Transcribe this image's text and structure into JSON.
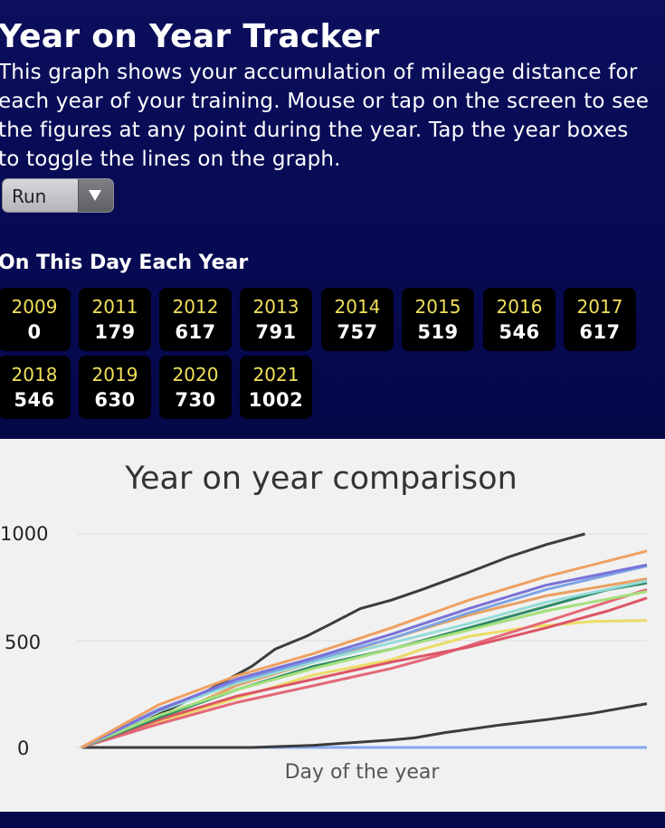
{
  "header": {
    "title": "Year on Year Tracker",
    "description": "This graph shows your accumulation of mileage distance for each year of your training. Mouse or tap on the screen to see the figures at any point during the year. Tap the year boxes to toggle the lines on the graph."
  },
  "activity_select": {
    "value": "Run",
    "arrow_icon": "chevron-down-icon"
  },
  "on_this_day": {
    "heading": "On This Day Each Year",
    "tiles": [
      {
        "year": "2009",
        "value": "0"
      },
      {
        "year": "2011",
        "value": "179"
      },
      {
        "year": "2012",
        "value": "617"
      },
      {
        "year": "2013",
        "value": "791"
      },
      {
        "year": "2014",
        "value": "757"
      },
      {
        "year": "2015",
        "value": "519"
      },
      {
        "year": "2016",
        "value": "546"
      },
      {
        "year": "2017",
        "value": "617"
      },
      {
        "year": "2018",
        "value": "546"
      },
      {
        "year": "2019",
        "value": "630"
      },
      {
        "year": "2020",
        "value": "730"
      },
      {
        "year": "2021",
        "value": "1002"
      }
    ]
  },
  "chart_data": {
    "type": "line",
    "title": "Year on year comparison",
    "xlabel": "Day of the year",
    "ylabel": "",
    "xlim": [
      0,
      365
    ],
    "ylim": [
      0,
      1000
    ],
    "yticks": [
      "1000",
      "500",
      "0"
    ],
    "ytick_values": [
      1000,
      500,
      0
    ],
    "grid": true,
    "legend": "none",
    "series": [
      {
        "color": "#87a8ee",
        "values": [
          [
            0,
            0
          ],
          [
            365,
            0
          ]
        ]
      },
      {
        "color": "#3c3c3c",
        "values": [
          [
            0,
            0
          ],
          [
            110,
            0
          ],
          [
            150,
            10
          ],
          [
            200,
            35
          ],
          [
            215,
            45
          ],
          [
            235,
            70
          ],
          [
            255,
            90
          ],
          [
            270,
            105
          ],
          [
            300,
            130
          ],
          [
            330,
            160
          ],
          [
            365,
            205
          ]
        ]
      },
      {
        "color": "#3c3c3c",
        "values": [
          [
            0,
            0
          ],
          [
            40,
            120
          ],
          [
            80,
            260
          ],
          [
            110,
            380
          ],
          [
            125,
            460
          ],
          [
            145,
            520
          ],
          [
            160,
            575
          ],
          [
            180,
            650
          ],
          [
            200,
            690
          ],
          [
            220,
            740
          ],
          [
            250,
            820
          ],
          [
            275,
            890
          ],
          [
            300,
            950
          ],
          [
            325,
            1000
          ]
        ]
      },
      {
        "color": "#ecdc66",
        "values": [
          [
            0,
            0
          ],
          [
            50,
            120
          ],
          [
            100,
            230
          ],
          [
            150,
            340
          ],
          [
            200,
            410
          ],
          [
            220,
            460
          ],
          [
            250,
            520
          ],
          [
            290,
            565
          ],
          [
            330,
            590
          ],
          [
            365,
            595
          ]
        ]
      },
      {
        "color": "#e8a060",
        "values": [
          [
            0,
            0
          ],
          [
            30,
            70
          ],
          [
            60,
            160
          ],
          [
            100,
            290
          ],
          [
            150,
            400
          ],
          [
            200,
            510
          ],
          [
            250,
            620
          ],
          [
            300,
            710
          ],
          [
            365,
            790
          ]
        ]
      },
      {
        "color": "#e46878",
        "values": [
          [
            0,
            0
          ],
          [
            50,
            110
          ],
          [
            100,
            210
          ],
          [
            150,
            290
          ],
          [
            200,
            370
          ],
          [
            230,
            430
          ],
          [
            260,
            500
          ],
          [
            300,
            590
          ],
          [
            365,
            740
          ]
        ]
      },
      {
        "color": "#dd5566",
        "values": [
          [
            0,
            0
          ],
          [
            50,
            130
          ],
          [
            100,
            240
          ],
          [
            150,
            320
          ],
          [
            200,
            400
          ],
          [
            250,
            470
          ],
          [
            300,
            560
          ],
          [
            340,
            640
          ],
          [
            365,
            700
          ]
        ]
      },
      {
        "color": "#2e8a66",
        "values": [
          [
            0,
            0
          ],
          [
            50,
            140
          ],
          [
            100,
            270
          ],
          [
            150,
            380
          ],
          [
            200,
            460
          ],
          [
            250,
            560
          ],
          [
            300,
            660
          ],
          [
            340,
            740
          ],
          [
            365,
            770
          ]
        ]
      },
      {
        "color": "#a4e07c",
        "values": [
          [
            0,
            0
          ],
          [
            50,
            150
          ],
          [
            100,
            270
          ],
          [
            150,
            370
          ],
          [
            200,
            460
          ],
          [
            250,
            550
          ],
          [
            300,
            640
          ],
          [
            365,
            730
          ]
        ]
      },
      {
        "color": "#96dcd8",
        "values": [
          [
            0,
            0
          ],
          [
            50,
            170
          ],
          [
            100,
            300
          ],
          [
            150,
            400
          ],
          [
            200,
            490
          ],
          [
            250,
            580
          ],
          [
            300,
            680
          ],
          [
            365,
            780
          ]
        ]
      },
      {
        "color": "#7ca4e4",
        "values": [
          [
            0,
            0
          ],
          [
            50,
            180
          ],
          [
            100,
            310
          ],
          [
            150,
            410
          ],
          [
            200,
            510
          ],
          [
            250,
            630
          ],
          [
            300,
            740
          ],
          [
            365,
            850
          ]
        ]
      },
      {
        "color": "#7a72d8",
        "values": [
          [
            0,
            0
          ],
          [
            50,
            175
          ],
          [
            100,
            320
          ],
          [
            150,
            420
          ],
          [
            200,
            530
          ],
          [
            250,
            650
          ],
          [
            300,
            760
          ],
          [
            365,
            855
          ]
        ]
      },
      {
        "color": "#f0a060",
        "values": [
          [
            0,
            0
          ],
          [
            50,
            200
          ],
          [
            100,
            335
          ],
          [
            150,
            440
          ],
          [
            200,
            560
          ],
          [
            250,
            690
          ],
          [
            300,
            800
          ],
          [
            365,
            920
          ]
        ]
      }
    ]
  }
}
